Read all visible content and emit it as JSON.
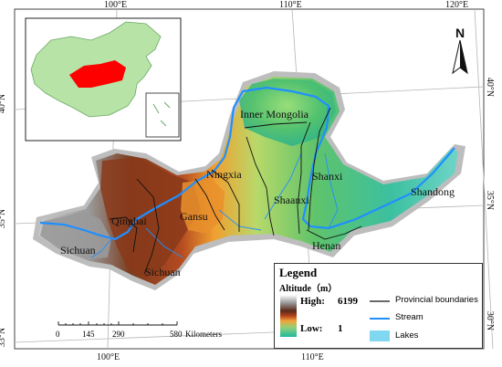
{
  "coordinates": {
    "top": [
      "100°E",
      "110°E",
      "120°E"
    ],
    "bottom": [
      "100°E",
      "110°E"
    ],
    "left": [
      "40°N",
      "35°N",
      "33°N"
    ],
    "right": [
      "40°N",
      "35°N",
      "30°N"
    ]
  },
  "north_label": "N",
  "provinces": {
    "inner_mongolia": "Inner Mongolia",
    "ningxia": "Ningxia",
    "gansu": "Gansu",
    "qinghai": "Qinghai",
    "shanxi": "Shanxi",
    "shaanxi": "Shaanxi",
    "henan": "Henan",
    "shandong": "Shandong",
    "sichuan_west": "Sichuan",
    "sichuan_south": "Sichuan"
  },
  "scale_bar": {
    "ticks": [
      "0",
      "145",
      "290",
      "580"
    ],
    "unit": "Kilometers"
  },
  "legend": {
    "title": "Legend",
    "altitude_label": "Altitude（m）",
    "high_label": "High:",
    "high_value": "6199",
    "low_label": "Low:",
    "low_value": "1",
    "boundary_label": "Provincial boundaries",
    "stream_label": "Stream",
    "lakes_label": "Lakes"
  },
  "colors": {
    "stream": "#1f8fff",
    "lakes": "#7fd8f0",
    "boundary": "#111111",
    "highlight_region": "#ff0000",
    "inset_land": "#b7e3a6"
  }
}
